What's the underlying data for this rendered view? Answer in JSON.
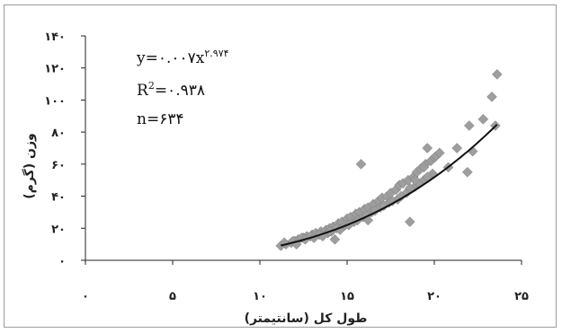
{
  "chart_data": {
    "type": "scatter",
    "xlabel": "طول کل (سانتیمتر)",
    "ylabel": "وزن (گرم)",
    "xlim": [
      0,
      25
    ],
    "ylim": [
      0,
      140
    ],
    "x_ticks": [
      0,
      5,
      10,
      15,
      20,
      25
    ],
    "x_tick_labels": [
      "۰",
      "۵",
      "۱۰",
      "۱۵",
      "۲۰",
      "۲۵"
    ],
    "y_ticks": [
      0,
      20,
      40,
      60,
      80,
      100,
      120,
      140
    ],
    "y_tick_labels": [
      "۰",
      "۲۰",
      "۴۰",
      "۶۰",
      "۸۰",
      "۱۰۰",
      "۱۲۰",
      "۱۴۰"
    ],
    "grid": false,
    "legend": "none",
    "annotations": {
      "equation_base": "y=۰.۰۰۷x",
      "equation_exp": "۲.۹۷۴",
      "r2_base": "R",
      "r2_sup": "2",
      "r2_value": "=۰.۹۳۸",
      "n": "n=۶۳۴"
    },
    "fit": {
      "a": 0.007,
      "b": 2.974,
      "x_range": [
        11.2,
        23.6
      ]
    },
    "points": {
      "x": [
        11.2,
        11.5,
        11.8,
        12.0,
        12.2,
        12.5,
        12.7,
        13.0,
        13.2,
        13.5,
        13.8,
        14.0,
        14.2,
        14.5,
        14.7,
        15.0,
        15.2,
        15.5,
        15.7,
        16.0,
        16.2,
        16.5,
        16.8,
        17.0,
        17.3,
        17.5,
        17.8,
        18.0,
        18.2,
        18.5,
        18.8,
        19.0,
        19.2,
        19.5,
        19.8,
        20.0,
        11.4,
        11.9,
        12.4,
        12.9,
        13.4,
        13.9,
        14.4,
        14.9,
        15.4,
        15.9,
        16.4,
        16.9,
        17.4,
        17.9,
        18.4,
        18.9,
        19.4,
        19.9,
        12.1,
        12.6,
        13.1,
        13.6,
        14.1,
        14.6,
        15.1,
        15.6,
        16.1,
        16.6,
        17.1,
        17.6,
        18.1,
        18.6,
        19.1,
        19.6,
        14.3,
        15.8,
        16.2,
        18.6,
        18.9,
        19.4,
        20.1,
        20.8,
        21.3,
        21.9,
        22.0,
        22.2,
        22.8,
        23.3,
        23.6,
        23.5,
        19.6,
        20.3,
        14.0
      ],
      "y": [
        9,
        10,
        11,
        12,
        13,
        14,
        15,
        16,
        17,
        18,
        19,
        20,
        21,
        23,
        24,
        26,
        27,
        29,
        30,
        32,
        33,
        35,
        37,
        39,
        40,
        42,
        44,
        47,
        48,
        50,
        52,
        55,
        57,
        60,
        62,
        64,
        11,
        12,
        14,
        15,
        16,
        17,
        20,
        22,
        24,
        27,
        30,
        33,
        36,
        38,
        42,
        46,
        50,
        54,
        10,
        13,
        14,
        15,
        18,
        19,
        22,
        25,
        28,
        31,
        34,
        37,
        40,
        45,
        48,
        52,
        13,
        60,
        25,
        24,
        50,
        58,
        65,
        58,
        70,
        55,
        84,
        68,
        88,
        102,
        116,
        84,
        70,
        67,
        18
      ]
    }
  }
}
